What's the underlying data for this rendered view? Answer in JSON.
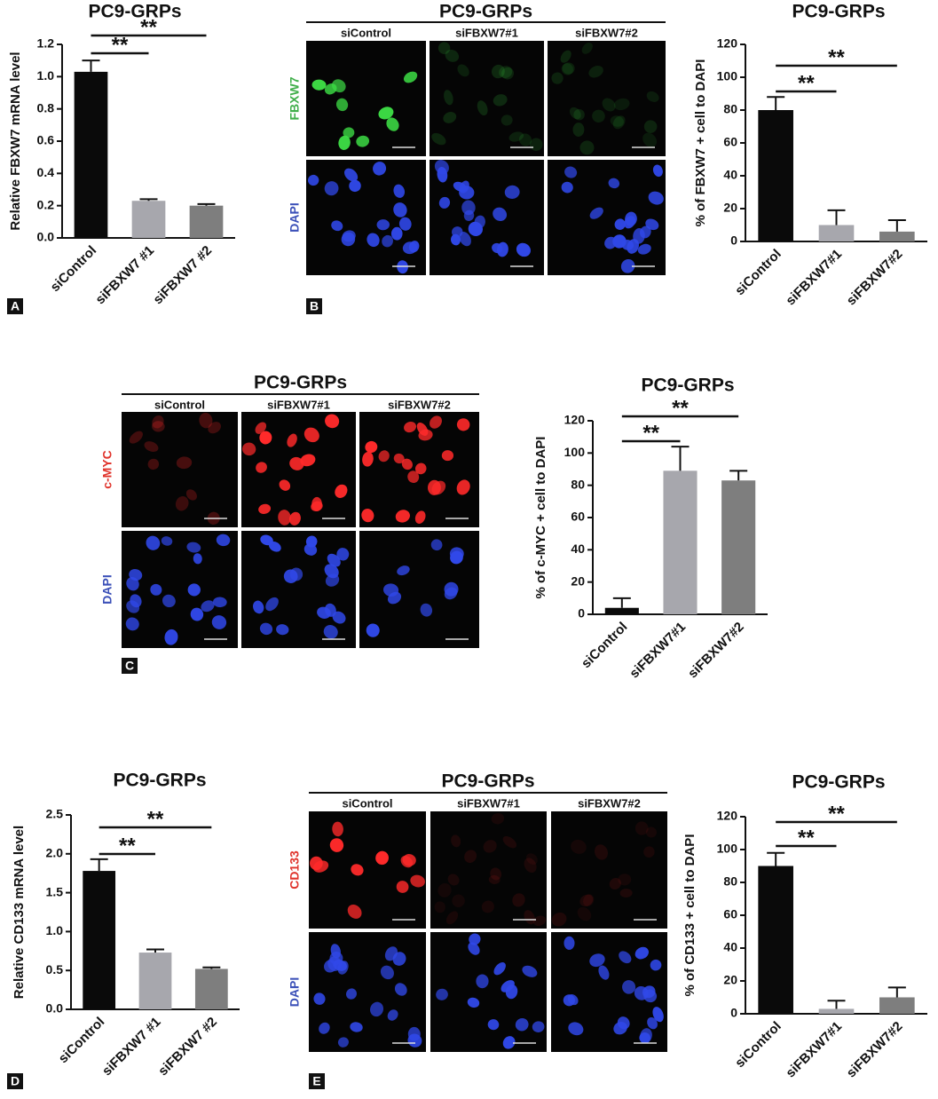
{
  "panel_letters": [
    "A",
    "B",
    "C",
    "D",
    "E"
  ],
  "image_panels": [
    {
      "title": "PC9-GRPs",
      "columns": [
        "siControl",
        "siFBXW7#1",
        "siFBXW7#2"
      ],
      "rows": [
        "FBXW7",
        "DAPI"
      ]
    },
    {
      "title": "PC9-GRPs",
      "columns": [
        "siControl",
        "siFBXW7#1",
        "siFBXW7#2"
      ],
      "rows": [
        "c-MYC",
        "DAPI"
      ]
    },
    {
      "title": "PC9-GRPs",
      "columns": [
        "siControl",
        "siFBXW7#1",
        "siFBXW7#2"
      ],
      "rows": [
        "CD133",
        "DAPI"
      ]
    }
  ],
  "chart_data": [
    {
      "type": "bar",
      "title": "PC9-GRPs",
      "y_label": "Relative FBXW7 mRNA level",
      "categories": [
        "siControl",
        "siFBXW7 #1",
        "siFBXW7 #2"
      ],
      "values": [
        1.03,
        0.23,
        0.2
      ],
      "errors": [
        0.07,
        0.01,
        0.01
      ],
      "colors": [
        "#0a0a0a",
        "#a7a7ad",
        "#7e7e7e"
      ],
      "ylim": [
        0,
        1.2
      ],
      "yticks": [
        {
          "value": 0,
          "label": "0.0"
        },
        0.2,
        0.4,
        0.6,
        0.8,
        {
          "value": 1,
          "label": "1.0"
        },
        1.2
      ],
      "significance": [
        "**",
        "**"
      ]
    },
    {
      "type": "bar",
      "title": "PC9-GRPs",
      "y_label": "% of FBXW7 + cell to DAPI",
      "categories": [
        "siControl",
        "siFBXW7#1",
        "siFBXW7#2"
      ],
      "values": [
        80,
        10,
        6
      ],
      "errors": [
        8,
        9,
        7
      ],
      "colors": [
        "#0a0a0a",
        "#a7a7ad",
        "#7e7e7e"
      ],
      "ylim": [
        0,
        120
      ],
      "yticks": [
        0,
        20,
        40,
        60,
        80,
        100,
        120
      ],
      "significance": [
        "**",
        "**"
      ]
    },
    {
      "type": "bar",
      "title": "PC9-GRPs",
      "y_label": "% of c-MYC + cell to DAPI",
      "categories": [
        "siControl",
        "siFBXW7#1",
        "siFBXW7#2"
      ],
      "values": [
        4,
        89,
        83
      ],
      "errors": [
        6,
        15,
        6
      ],
      "colors": [
        "#0a0a0a",
        "#a7a7ad",
        "#7e7e7e"
      ],
      "ylim": [
        0,
        120
      ],
      "yticks": [
        0,
        20,
        40,
        60,
        80,
        100,
        120
      ],
      "significance": [
        "**",
        "**"
      ]
    },
    {
      "type": "bar",
      "title": "PC9-GRPs",
      "y_label": "Relative CD133 mRNA level",
      "categories": [
        "siControl",
        "siFBXW7 #1",
        "siFBXW7 #2"
      ],
      "values": [
        1.78,
        0.73,
        0.52
      ],
      "errors": [
        0.15,
        0.04,
        0.02
      ],
      "colors": [
        "#0a0a0a",
        "#a7a7ad",
        "#7e7e7e"
      ],
      "ylim": [
        0,
        2.5
      ],
      "yticks": [
        {
          "value": 0,
          "label": "0.0"
        },
        0.5,
        {
          "value": 1,
          "label": "1.0"
        },
        1.5,
        {
          "value": 2,
          "label": "2.0"
        },
        2.5
      ],
      "significance": [
        "**",
        "**"
      ]
    },
    {
      "type": "bar",
      "title": "PC9-GRPs",
      "y_label": "% of CD133 + cell to DAPI",
      "categories": [
        "siControl",
        "siFBXW7#1",
        "siFBXW7#2"
      ],
      "values": [
        90,
        3,
        10
      ],
      "errors": [
        8,
        5,
        6
      ],
      "colors": [
        "#0a0a0a",
        "#a7a7ad",
        "#7e7e7e"
      ],
      "ylim": [
        0,
        120
      ],
      "yticks": [
        0,
        20,
        40,
        60,
        80,
        100,
        120
      ],
      "significance": [
        "**",
        "**"
      ]
    }
  ]
}
